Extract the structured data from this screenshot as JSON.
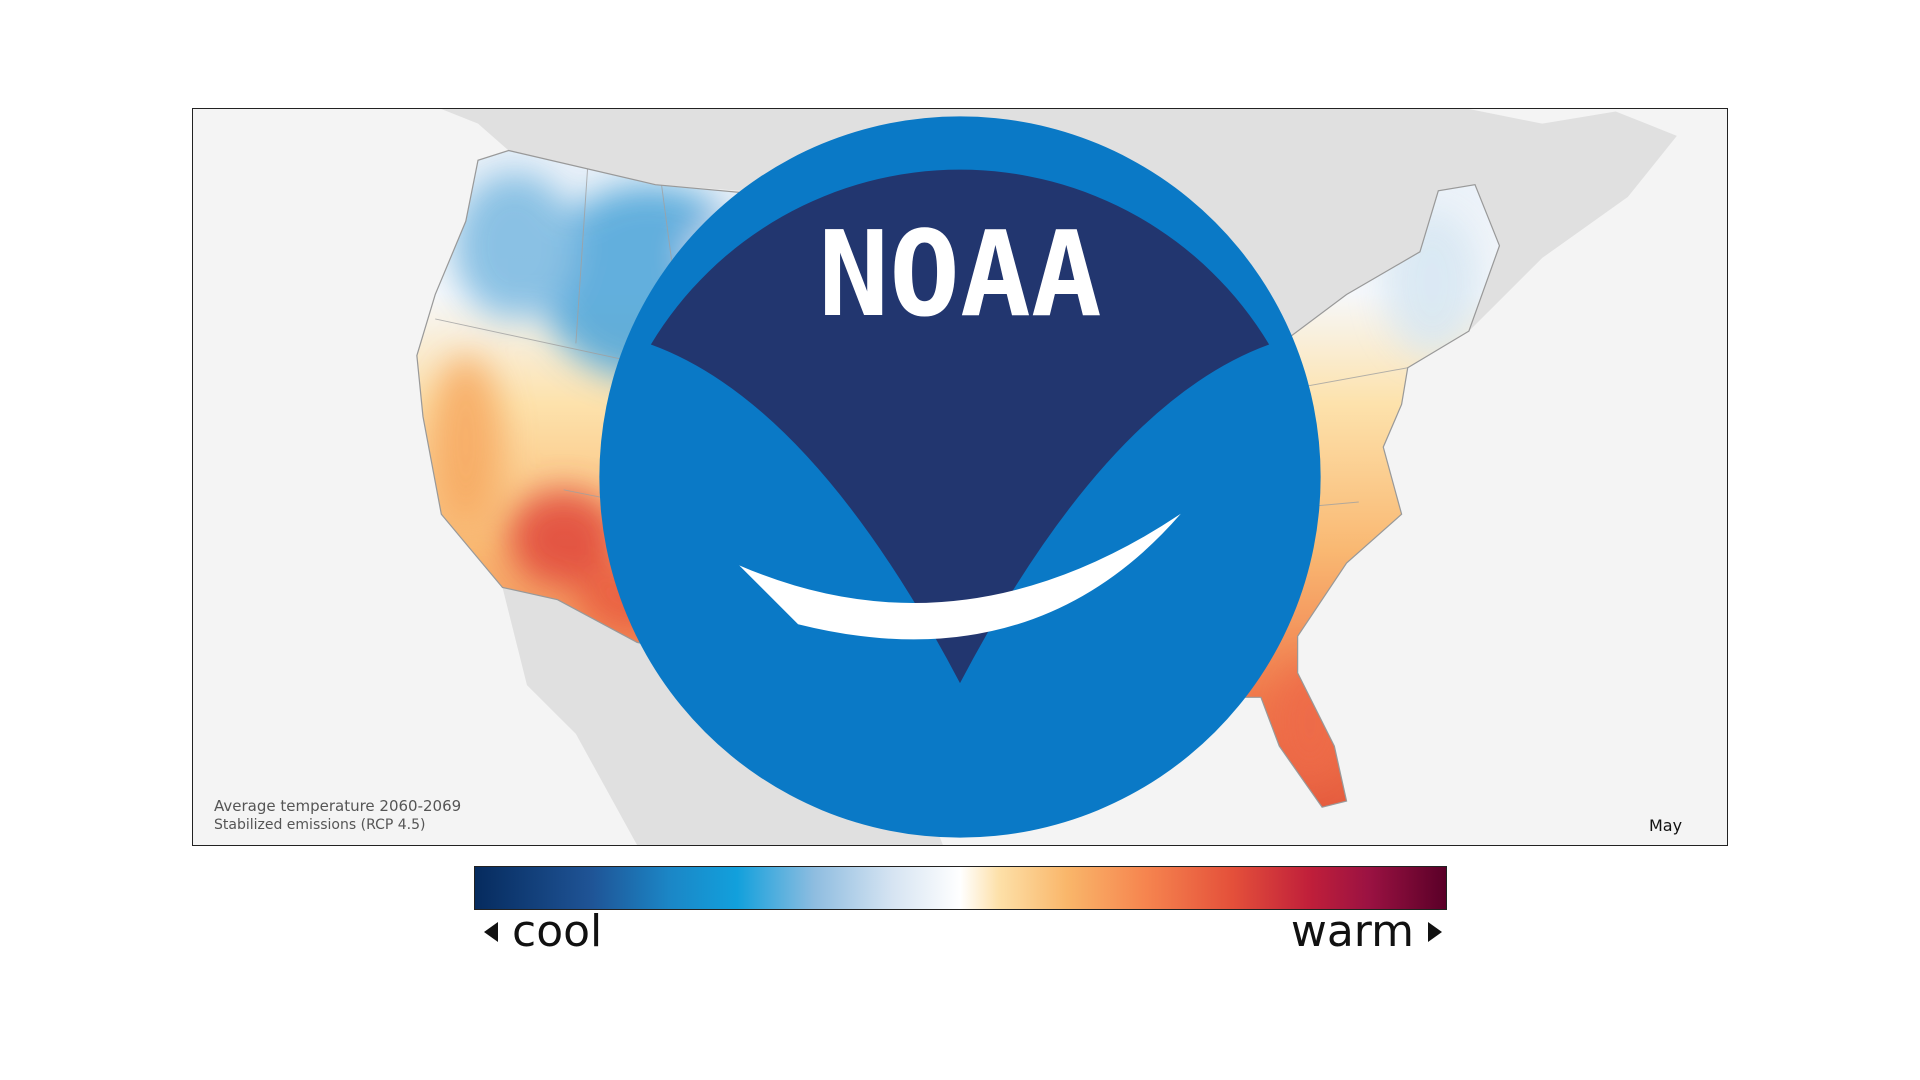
{
  "map": {
    "caption_title": "Average temperature 2060-2069",
    "caption_subtitle": "Stabilized emissions (RCP 4.5)",
    "month": "May",
    "logo_text": "NOAA"
  },
  "legend": {
    "cool_label": "cool",
    "warm_label": "warm",
    "colors": [
      "#062b5e",
      "#12a0dc",
      "#ffffff",
      "#f9b66a",
      "#e4503a",
      "#5a0028"
    ]
  }
}
